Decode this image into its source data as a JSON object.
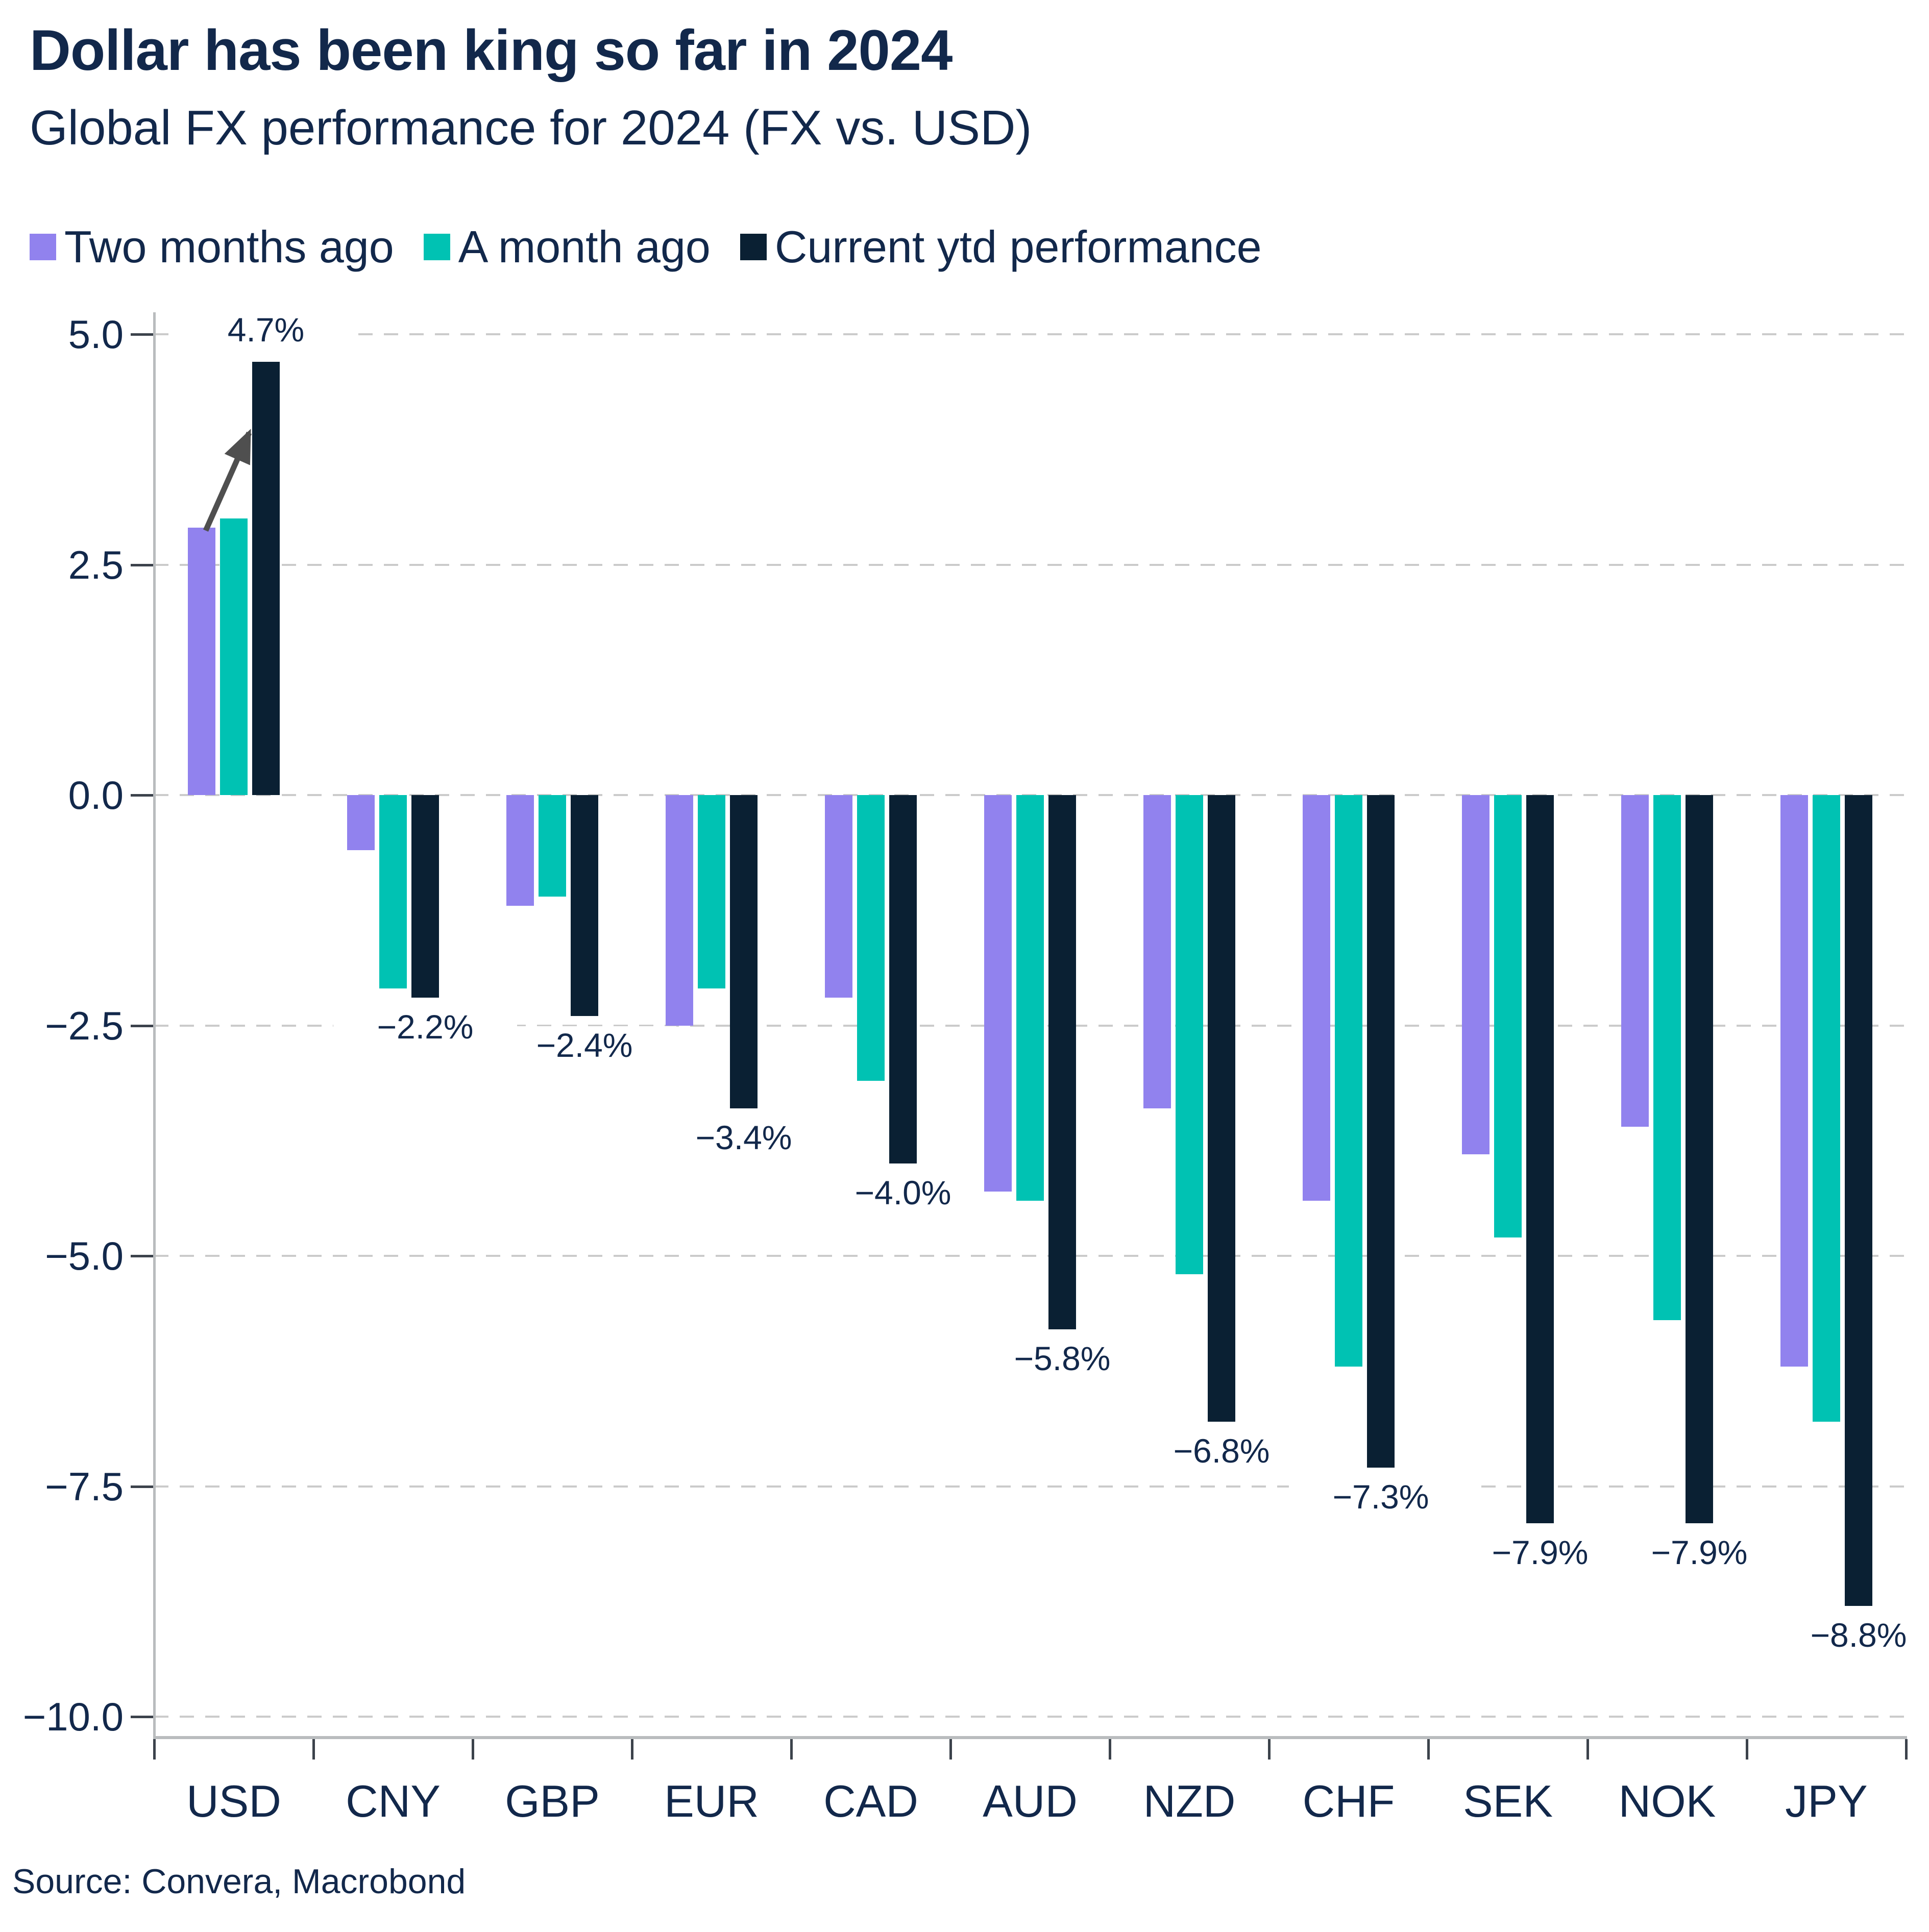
{
  "header": {
    "title": "Dollar has been king so far in 2024",
    "subtitle": "Global FX performance for 2024 (FX vs. USD)"
  },
  "source_text": "Source: Convera, Macrobond",
  "colors": {
    "purple": "#9182ee",
    "teal": "#00c2b3",
    "navy": "#0a2033",
    "text": "#12284b",
    "gridline": "#cbcbcb",
    "axis_line": "#b9bcbe",
    "tick": "#3c434c",
    "arrow": "#4f4f4f"
  },
  "chart_data": {
    "type": "bar",
    "title": "Dollar has been king so far in 2024",
    "subtitle": "Global FX performance for 2024 (FX vs. USD)",
    "source": "Source: Convera, Macrobond",
    "categories": [
      "USD",
      "CNY",
      "GBP",
      "EUR",
      "CAD",
      "AUD",
      "NZD",
      "CHF",
      "SEK",
      "NOK",
      "JPY"
    ],
    "series": [
      {
        "name": "Two months ago",
        "key": "two-months-ago",
        "color": "#9182ee",
        "values": [
          2.9,
          -0.6,
          -1.2,
          -2.5,
          -2.2,
          -4.3,
          -3.4,
          -4.4,
          -3.9,
          -3.6,
          -6.2
        ]
      },
      {
        "name": "A month ago",
        "key": "a-month-ago",
        "color": "#00c2b3",
        "values": [
          3.0,
          -2.1,
          -1.1,
          -2.1,
          -3.1,
          -4.4,
          -5.2,
          -6.2,
          -4.8,
          -5.7,
          -6.8
        ]
      },
      {
        "name": "Current ytd performance",
        "key": "current-ytd-performance",
        "color": "#0a2033",
        "values": [
          4.7,
          -2.2,
          -2.4,
          -3.4,
          -4.0,
          -5.8,
          -6.8,
          -7.3,
          -7.9,
          -7.9,
          -8.8
        ]
      }
    ],
    "value_labels": [
      "4.7%",
      "−2.2%",
      "−2.4%",
      "−3.4%",
      "−4.0%",
      "−5.8%",
      "−6.8%",
      "−7.3%",
      "−7.9%",
      "−7.9%",
      "−8.8%"
    ],
    "value_label_series": "Current ytd performance",
    "y_ticks": [
      {
        "value": 5.0,
        "label": "5.0"
      },
      {
        "value": 2.5,
        "label": "2.5"
      },
      {
        "value": 0.0,
        "label": "0.0"
      },
      {
        "value": -2.5,
        "label": "−2.5"
      },
      {
        "value": -5.0,
        "label": "−5.0"
      },
      {
        "value": -7.5,
        "label": "−7.5"
      },
      {
        "value": -10.0,
        "label": "−10.0"
      }
    ],
    "ylim": [
      -10.0,
      5.0
    ],
    "xlabel": "",
    "ylabel": "",
    "grid": "horizontal dashed",
    "legend_position": "top",
    "annotation": {
      "type": "arrow",
      "category": "USD",
      "from_series_index": 0,
      "from_value": 2.87,
      "to_series_index": 2,
      "to_value": 3.93
    }
  }
}
